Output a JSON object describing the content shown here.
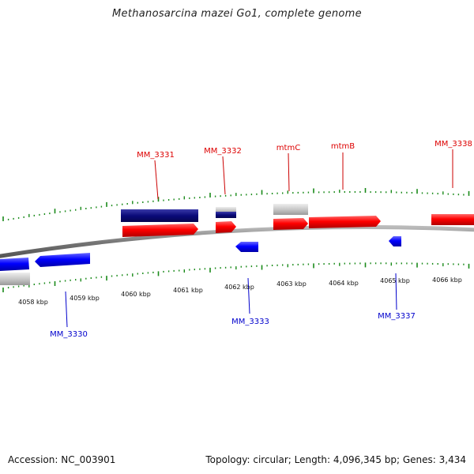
{
  "title": "Methanosarcina mazei Go1, complete genome",
  "footer": {
    "accession": "Accession: NC_003901",
    "summary": "Topology: circular; Length: 4,096,345 bp; Genes: 3,434"
  },
  "colors": {
    "forward": "#ff0000",
    "reverse": "#0000ff",
    "gene_forward": "#0a0a7a",
    "gene_other": "#c8c8c8",
    "tick": "#1a8a1a",
    "backbone": "#888888"
  },
  "ticks": [
    {
      "label": "4058 kbp"
    },
    {
      "label": "4059 kbp"
    },
    {
      "label": "4060 kbp"
    },
    {
      "label": "4061 kbp"
    },
    {
      "label": "4062 kbp"
    },
    {
      "label": "4063 kbp"
    },
    {
      "label": "4064 kbp"
    },
    {
      "label": "4065 kbp"
    },
    {
      "label": "4066 kbp"
    }
  ],
  "features_forward": [
    {
      "name": "MM_3331"
    },
    {
      "name": "MM_3332"
    },
    {
      "name": "mtmC"
    },
    {
      "name": "mtmB"
    },
    {
      "name": "MM_3338"
    }
  ],
  "features_reverse": [
    {
      "name": "MM_3330"
    },
    {
      "name": "MM_3333"
    },
    {
      "name": "MM_3337"
    }
  ]
}
